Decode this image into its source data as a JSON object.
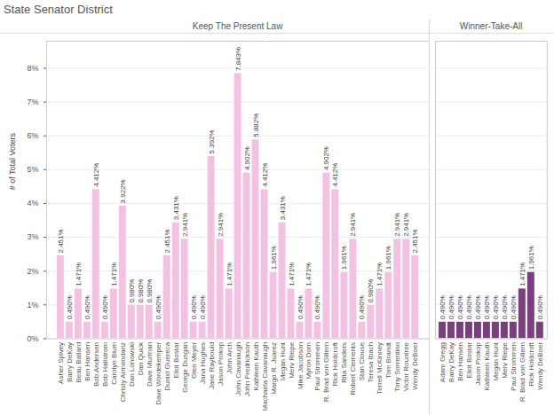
{
  "chart_data": {
    "type": "bar",
    "title": "State Senator District",
    "ylabel": "# of Total Voters",
    "ylim": [
      0,
      8.8
    ],
    "yticks": [
      {
        "value": 0,
        "label": "0%"
      },
      {
        "value": 1,
        "label": "1%"
      },
      {
        "value": 2,
        "label": "2%"
      },
      {
        "value": 3,
        "label": "3%"
      },
      {
        "value": 4,
        "label": "4%"
      },
      {
        "value": 5,
        "label": "5%"
      },
      {
        "value": 6,
        "label": "6%"
      },
      {
        "value": 7,
        "label": "7%"
      },
      {
        "value": 8,
        "label": "8%"
      }
    ],
    "grid": true,
    "data_labels": true,
    "facets": [
      {
        "title": "Keep The Present Law",
        "color": "#f3c2e3",
        "categories": [
          "Asher Spivey",
          "Barry DeKay",
          "Beau Ballard",
          "Ben Hansen",
          "Bob Andersen",
          "Bob Hallstrom",
          "Carolyn Blum",
          "Christy Armendariz",
          "Dan Lonowski",
          "Dan Quick",
          "Dave Murman",
          "Dave Wordekemper",
          "Dunixi Guereca",
          "Eliot Bostar",
          "George Dungan",
          "Glen Meyer",
          "Jana Hughes",
          "Jane Raybould",
          "Jason Prokop",
          "John Arch",
          "John Cavanaugh",
          "John Fredrickson",
          "Kathleen Kauth",
          "Machaela Cavanaugh",
          "Margo R. Juarez",
          "Megan Hunt",
          "Merv Riepe",
          "Mike Jacobson",
          "Myron Dorn",
          "Paul Strommen",
          "R. Brad von Gillern",
          "Rick Holdcroft",
          "Rita Sanders",
          "Robert Clements",
          "Stan Clouse",
          "Teresa Ibach",
          "Terrell McKinney",
          "Tom Brandt",
          "Tony Sorrentino",
          "Victor Rountree",
          "Wendy DeBoer"
        ],
        "values": [
          2.451,
          0.49,
          1.471,
          0.49,
          4.412,
          0.49,
          1.471,
          3.922,
          0.98,
          0.98,
          0.98,
          0.49,
          2.451,
          3.431,
          2.941,
          0.49,
          0.49,
          5.392,
          2.941,
          1.471,
          7.843,
          4.902,
          5.882,
          4.412,
          1.961,
          3.431,
          1.471,
          0.49,
          1.471,
          0.49,
          4.902,
          4.412,
          1.961,
          2.941,
          0.49,
          0.98,
          1.471,
          1.961,
          2.941,
          2.941,
          2.451
        ],
        "value_labels": [
          "2.451%",
          "0.490%",
          "1.471%",
          "0.490%",
          "4.412%",
          "0.490%",
          "1.471%",
          "3.922%",
          "0.980%",
          "0.980%",
          "0.980%",
          "0.490%",
          "2.451%",
          "3.431%",
          "2.941%",
          "0.490%",
          "0.490%",
          "5.392%",
          "2.941%",
          "1.471%",
          "7.843%",
          "4.902%",
          "5.882%",
          "4.412%",
          "1.961%",
          "3.431%",
          "1.471%",
          "0.490%",
          "1.471%",
          "0.490%",
          "4.902%",
          "4.412%",
          "1.961%",
          "2.941%",
          "0.490%",
          "0.980%",
          "1.471%",
          "1.961%",
          "2.941%",
          "2.941%",
          "2.451%"
        ]
      },
      {
        "title": "Winner-Take-All",
        "color": "#7b3f7d",
        "categories": [
          "Adam Gregg",
          "Barry DeKay",
          "Ben Hansen",
          "Eliot Bostar",
          "Jason Prokop",
          "Kathleen Kauth",
          "Megan Hunt",
          "Merv Riepe",
          "Paul Strommen",
          "R. Brad von Gillern",
          "Rick Holdcroft",
          "Wendy DeBoer"
        ],
        "values": [
          0.49,
          0.49,
          0.49,
          0.49,
          0.49,
          0.49,
          0.49,
          0.49,
          0.49,
          1.471,
          1.961,
          0.49
        ],
        "value_labels": [
          "0.490%",
          "0.490%",
          "0.490%",
          "0.490%",
          "0.490%",
          "0.490%",
          "0.490%",
          "0.490%",
          "0.490%",
          "1.471%",
          "1.961%",
          "0.490%"
        ]
      }
    ]
  }
}
